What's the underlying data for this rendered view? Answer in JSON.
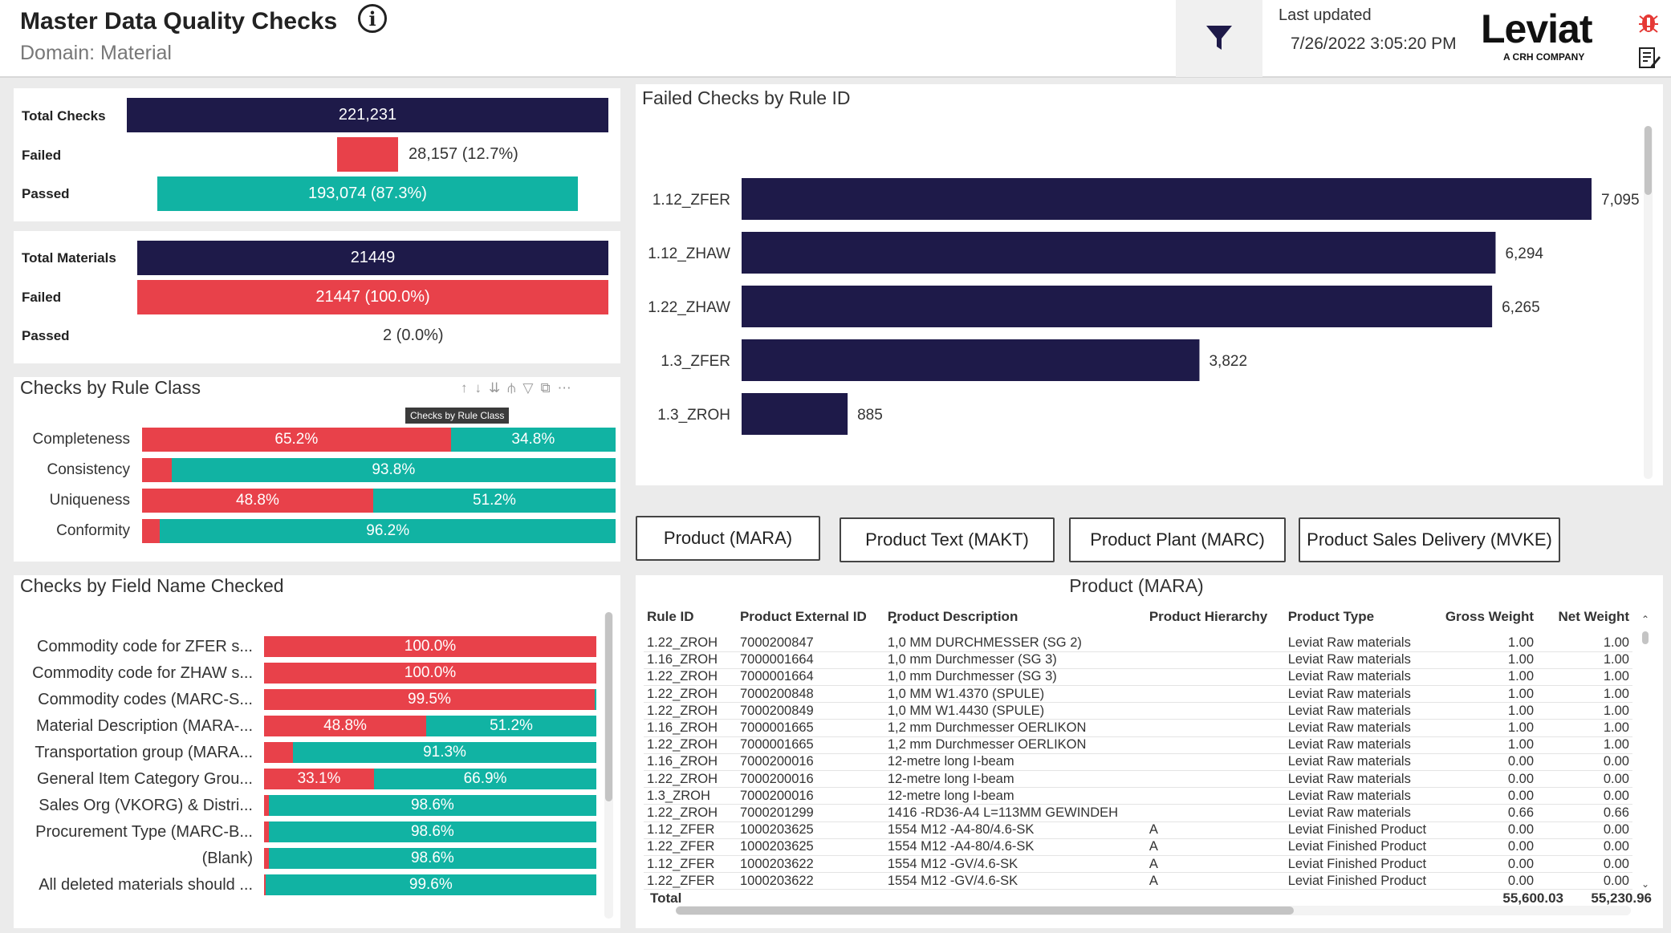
{
  "header": {
    "title": "Master Data Quality Checks",
    "subtitle": "Domain: Material",
    "last_updated_label": "Last updated",
    "last_updated_value": "7/26/2022 3:05:20 PM",
    "logo_text": "Leviat",
    "logo_sub": "A CRH COMPANY"
  },
  "checks_summary": {
    "total_label": "Total Checks",
    "total_value": "221,231",
    "failed_label": "Failed",
    "failed_value": "28,157 (12.7%)",
    "passed_label": "Passed",
    "passed_value": "193,074 (87.3%)"
  },
  "materials_summary": {
    "total_label": "Total Materials",
    "total_value": "21449",
    "failed_label": "Failed",
    "failed_value": "21447 (100.0%)",
    "passed_label": "Passed",
    "passed_value": "2 (0.0%)"
  },
  "rule_class": {
    "title": "Checks by Rule Class",
    "tooltip": "Checks by Rule Class",
    "rows": [
      {
        "label": "Completeness",
        "failed_pct": 65.2,
        "failed_text": "65.2%",
        "passed_text": "34.8%"
      },
      {
        "label": "Consistency",
        "failed_pct": 6.2,
        "failed_text": "",
        "passed_text": "93.8%"
      },
      {
        "label": "Uniqueness",
        "failed_pct": 48.8,
        "failed_text": "48.8%",
        "passed_text": "51.2%"
      },
      {
        "label": "Conformity",
        "failed_pct": 3.8,
        "failed_text": "",
        "passed_text": "96.2%"
      }
    ]
  },
  "field_name": {
    "title": "Checks by Field Name Checked",
    "rows": [
      {
        "label": "Commodity code for ZFER s...",
        "failed_pct": 100.0,
        "failed_text": "100.0%",
        "passed_text": ""
      },
      {
        "label": "Commodity code for ZHAW s...",
        "failed_pct": 100.0,
        "failed_text": "100.0%",
        "passed_text": ""
      },
      {
        "label": "Commodity codes (MARC-S...",
        "failed_pct": 99.5,
        "failed_text": "99.5%",
        "passed_text": ""
      },
      {
        "label": "Material Description (MARA-...",
        "failed_pct": 48.8,
        "failed_text": "48.8%",
        "passed_text": "51.2%"
      },
      {
        "label": "Transportation group (MARA...",
        "failed_pct": 8.7,
        "failed_text": "",
        "passed_text": "91.3%"
      },
      {
        "label": "General Item Category Grou...",
        "failed_pct": 33.1,
        "failed_text": "33.1%",
        "passed_text": "66.9%"
      },
      {
        "label": "Sales Org (VKORG) & Distri...",
        "failed_pct": 1.4,
        "failed_text": "",
        "passed_text": "98.6%"
      },
      {
        "label": "Procurement Type (MARC-B...",
        "failed_pct": 1.4,
        "failed_text": "",
        "passed_text": "98.6%"
      },
      {
        "label": "(Blank)",
        "failed_pct": 1.4,
        "failed_text": "",
        "passed_text": "98.6%"
      },
      {
        "label": "All deleted materials should ...",
        "failed_pct": 0.4,
        "failed_text": "",
        "passed_text": "99.6%"
      }
    ]
  },
  "chart_data": {
    "type": "bar",
    "title": "Failed Checks by Rule ID",
    "categories": [
      "1.12_ZFER",
      "1.12_ZHAW",
      "1.22_ZHAW",
      "1.3_ZFER",
      "1.3_ZROH"
    ],
    "values": [
      7095,
      6294,
      6265,
      3822,
      885
    ],
    "labels": [
      "7,095",
      "6,294",
      "6,265",
      "3,822",
      "885"
    ],
    "xlim": [
      0,
      7200
    ],
    "orientation": "horizontal",
    "color": "#1e1a49"
  },
  "tabs": [
    "Product (MARA)",
    "Product Text (MAKT)",
    "Product Plant (MARC)",
    "Product Sales Delivery (MVKE)"
  ],
  "table": {
    "title": "Product (MARA)",
    "columns": [
      "Rule ID",
      "Product External ID",
      "Product Description",
      "Product Hierarchy",
      "Product Type",
      "Gross Weight",
      "Net Weight"
    ],
    "rows": [
      [
        "1.22_ZROH",
        "7000200847",
        "1,0 MM DURCHMESSER (SG 2)",
        "",
        "Leviat Raw materials",
        "1.00",
        "1.00"
      ],
      [
        "1.16_ZROH",
        "7000001664",
        "1,0 mm Durchmesser (SG 3)",
        "",
        "Leviat Raw materials",
        "1.00",
        "1.00"
      ],
      [
        "1.22_ZROH",
        "7000001664",
        "1,0 mm Durchmesser (SG 3)",
        "",
        "Leviat Raw materials",
        "1.00",
        "1.00"
      ],
      [
        "1.22_ZROH",
        "7000200848",
        "1,0 MM W1.4370 (SPULE)",
        "",
        "Leviat Raw materials",
        "1.00",
        "1.00"
      ],
      [
        "1.22_ZROH",
        "7000200849",
        "1,0 MM W1.4430 (SPULE)",
        "",
        "Leviat Raw materials",
        "1.00",
        "1.00"
      ],
      [
        "1.16_ZROH",
        "7000001665",
        "1,2 mm Durchmesser OERLIKON",
        "",
        "Leviat Raw materials",
        "1.00",
        "1.00"
      ],
      [
        "1.22_ZROH",
        "7000001665",
        "1,2 mm Durchmesser OERLIKON",
        "",
        "Leviat Raw materials",
        "1.00",
        "1.00"
      ],
      [
        "1.16_ZROH",
        "7000200016",
        "12-metre long I-beam",
        "",
        "Leviat Raw materials",
        "0.00",
        "0.00"
      ],
      [
        "1.22_ZROH",
        "7000200016",
        "12-metre long I-beam",
        "",
        "Leviat Raw materials",
        "0.00",
        "0.00"
      ],
      [
        "1.3_ZROH",
        "7000200016",
        "12-metre long I-beam",
        "",
        "Leviat Raw materials",
        "0.00",
        "0.00"
      ],
      [
        "1.22_ZROH",
        "7000201299",
        "1416 -RD36-A4 L=113MM GEWINDEH",
        "",
        "Leviat Raw materials",
        "0.66",
        "0.66"
      ],
      [
        "1.12_ZFER",
        "1000203625",
        "1554 M12 -A4-80/4.6-SK",
        "A",
        "Leviat Finished Product",
        "0.00",
        "0.00"
      ],
      [
        "1.22_ZFER",
        "1000203625",
        "1554 M12 -A4-80/4.6-SK",
        "A",
        "Leviat Finished Product",
        "0.00",
        "0.00"
      ],
      [
        "1.12_ZFER",
        "1000203622",
        "1554 M12 -GV/4.6-SK",
        "A",
        "Leviat Finished Product",
        "0.00",
        "0.00"
      ],
      [
        "1.22_ZFER",
        "1000203622",
        "1554 M12 -GV/4.6-SK",
        "A",
        "Leviat Finished Product",
        "0.00",
        "0.00"
      ]
    ],
    "total_label": "Total",
    "total_gross": "55,600.03",
    "total_net": "55,230.96"
  }
}
